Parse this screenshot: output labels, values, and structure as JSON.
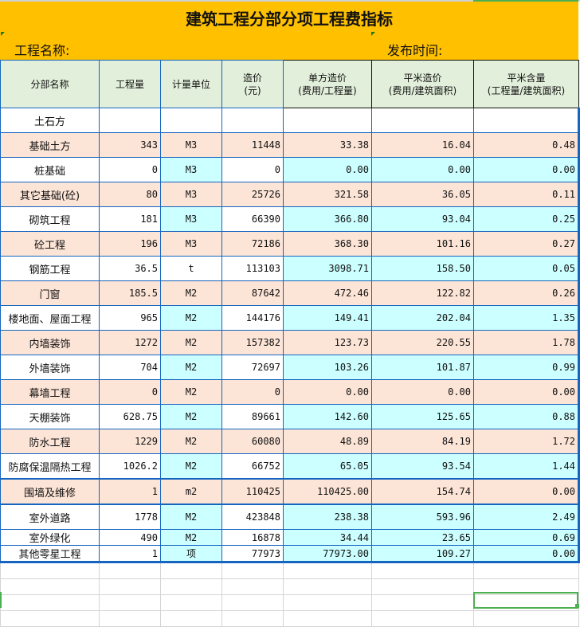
{
  "sheet": {
    "title": "建筑工程分部分项工程费指标",
    "project_label": "工程名称:",
    "date_label": "发布时间:"
  },
  "columns": [
    {
      "key": "name",
      "label": "分部名称"
    },
    {
      "key": "qty",
      "label": "工程量"
    },
    {
      "key": "unit",
      "label": "计量单位"
    },
    {
      "key": "cost",
      "label": "造价",
      "sub": "(元)"
    },
    {
      "key": "unit_cost",
      "label": "单方造价",
      "sub": "(费用/工程量)"
    },
    {
      "key": "sqm_cost",
      "label": "平米造价",
      "sub": "(费用/建筑面积)"
    },
    {
      "key": "sqm_qty",
      "label": "平米含量",
      "sub": "(工程量/建筑面积)"
    }
  ],
  "rows": [
    {
      "name": "土石方",
      "qty": "",
      "unit": "",
      "cost": "",
      "unit_cost": "",
      "sqm_cost": "",
      "sqm_qty": ""
    },
    {
      "name": "基础土方",
      "qty": "343",
      "unit": "M3",
      "cost": "11448",
      "unit_cost": "33.38",
      "sqm_cost": "16.04",
      "sqm_qty": "0.48"
    },
    {
      "name": "桩基础",
      "qty": "0",
      "unit": "M3",
      "cost": "0",
      "unit_cost": "0.00",
      "sqm_cost": "0.00",
      "sqm_qty": "0.00"
    },
    {
      "name": "其它基础(砼)",
      "qty": "80",
      "unit": "M3",
      "cost": "25726",
      "unit_cost": "321.58",
      "sqm_cost": "36.05",
      "sqm_qty": "0.11"
    },
    {
      "name": "砌筑工程",
      "qty": "181",
      "unit": "M3",
      "cost": "66390",
      "unit_cost": "366.80",
      "sqm_cost": "93.04",
      "sqm_qty": "0.25"
    },
    {
      "name": "砼工程",
      "qty": "196",
      "unit": "M3",
      "cost": "72186",
      "unit_cost": "368.30",
      "sqm_cost": "101.16",
      "sqm_qty": "0.27"
    },
    {
      "name": "钢筋工程",
      "qty": "36.5",
      "unit": "t",
      "cost": "113103",
      "unit_cost": "3098.71",
      "sqm_cost": "158.50",
      "sqm_qty": "0.05"
    },
    {
      "name": "门窗",
      "qty": "185.5",
      "unit": "M2",
      "cost": "87642",
      "unit_cost": "472.46",
      "sqm_cost": "122.82",
      "sqm_qty": "0.26"
    },
    {
      "name": "楼地面、屋面工程",
      "qty": "965",
      "unit": "M2",
      "cost": "144176",
      "unit_cost": "149.41",
      "sqm_cost": "202.04",
      "sqm_qty": "1.35"
    },
    {
      "name": "内墙装饰",
      "qty": "1272",
      "unit": "M2",
      "cost": "157382",
      "unit_cost": "123.73",
      "sqm_cost": "220.55",
      "sqm_qty": "1.78"
    },
    {
      "name": "外墙装饰",
      "qty": "704",
      "unit": "M2",
      "cost": "72697",
      "unit_cost": "103.26",
      "sqm_cost": "101.87",
      "sqm_qty": "0.99"
    },
    {
      "name": "幕墙工程",
      "qty": "0",
      "unit": "M2",
      "cost": "0",
      "unit_cost": "0.00",
      "sqm_cost": "0.00",
      "sqm_qty": "0.00"
    },
    {
      "name": "天棚装饰",
      "qty": "628.75",
      "unit": "M2",
      "cost": "89661",
      "unit_cost": "142.60",
      "sqm_cost": "125.65",
      "sqm_qty": "0.88"
    },
    {
      "name": "防水工程",
      "qty": "1229",
      "unit": "M2",
      "cost": "60080",
      "unit_cost": "48.89",
      "sqm_cost": "84.19",
      "sqm_qty": "1.72"
    },
    {
      "name": "防腐保温隔热工程",
      "qty": "1026.2",
      "unit": "M2",
      "cost": "66752",
      "unit_cost": "65.05",
      "sqm_cost": "93.54",
      "sqm_qty": "1.44"
    },
    {
      "name": "围墙及维修",
      "qty": "1",
      "unit": "m2",
      "cost": "110425",
      "unit_cost": "110425.00",
      "sqm_cost": "154.74",
      "sqm_qty": "0.00"
    },
    {
      "name": "室外道路",
      "qty": "1778",
      "unit": "M2",
      "cost": "423848",
      "unit_cost": "238.38",
      "sqm_cost": "593.96",
      "sqm_qty": "2.49"
    },
    {
      "name": "室外绿化",
      "qty": "490",
      "unit": "M2",
      "cost": "16878",
      "unit_cost": "34.44",
      "sqm_cost": "23.65",
      "sqm_qty": "0.69"
    },
    {
      "name": "其他零星工程",
      "qty": "1",
      "unit": "项",
      "cost": "77973",
      "unit_cost": "77973.00",
      "sqm_cost": "109.27",
      "sqm_qty": "0.00"
    }
  ],
  "colors": {
    "title_bg": "#FFC000",
    "header_bg": "#E2EFDA",
    "peach": "#FCE4D6",
    "cyan": "#CCFFFF",
    "border_blue": "#1565C0",
    "selection_green": "#4CAF50"
  }
}
